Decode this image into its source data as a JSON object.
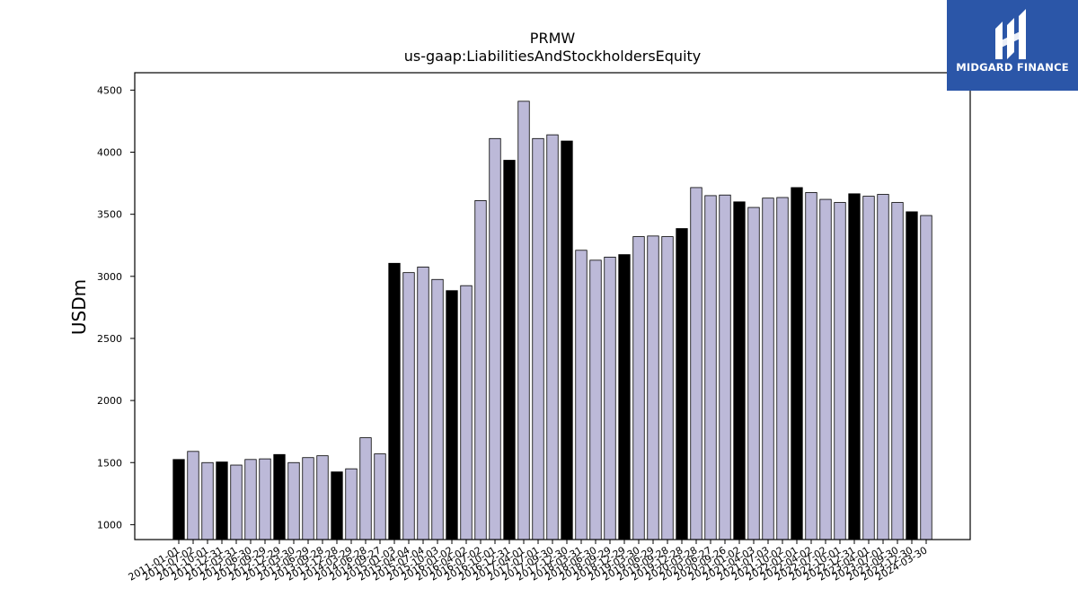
{
  "chart_data": {
    "type": "bar",
    "title": "PRMW",
    "subtitle": "us-gaap:LiabilitiesAndStockholdersEquity",
    "xlabel": "",
    "ylabel": "USDm",
    "ylim": [
      880,
      4640
    ],
    "yticks": [
      1000,
      1500,
      2000,
      2500,
      3000,
      3500,
      4000,
      4500
    ],
    "grid": false,
    "colors": {
      "highlight": "#000000",
      "normal": "#bcb9d8",
      "edge": "#000000"
    },
    "categories": [
      "2011-01-01",
      "2011-07-02",
      "2011-10-01",
      "2011-12-31",
      "2012-03-31",
      "2012-06-30",
      "2012-09-29",
      "2012-12-29",
      "2013-03-30",
      "2013-06-29",
      "2013-09-28",
      "2013-12-28",
      "2014-03-29",
      "2014-06-28",
      "2014-09-27",
      "2015-01-03",
      "2015-04-04",
      "2015-07-04",
      "2015-10-03",
      "2016-01-02",
      "2016-04-02",
      "2016-07-02",
      "2016-10-01",
      "2016-12-31",
      "2017-04-01",
      "2017-07-01",
      "2017-09-30",
      "2017-12-30",
      "2018-03-31",
      "2018-06-30",
      "2018-09-29",
      "2018-12-29",
      "2019-03-30",
      "2019-06-29",
      "2019-09-28",
      "2019-12-28",
      "2020-03-28",
      "2020-06-27",
      "2020-09-26",
      "2021-01-02",
      "2021-04-03",
      "2021-07-03",
      "2021-10-02",
      "2022-01-01",
      "2022-04-02",
      "2022-07-02",
      "2022-10-01",
      "2022-12-31",
      "2023-04-01",
      "2023-07-01",
      "2023-09-30",
      "2023-12-30",
      "2024-03-30"
    ],
    "values": [
      1525,
      1590,
      1500,
      1505,
      1480,
      1525,
      1530,
      1565,
      1500,
      1540,
      1555,
      1425,
      1450,
      1700,
      1570,
      3105,
      3030,
      3075,
      2975,
      2885,
      2925,
      3610,
      4110,
      3935,
      4410,
      4110,
      4140,
      4090,
      3210,
      3130,
      3155,
      3175,
      3320,
      3325,
      3320,
      3385,
      3715,
      3650,
      3655,
      3600,
      3555,
      3630,
      3635,
      3715,
      3675,
      3620,
      3595,
      3665,
      3645,
      3660,
      3595,
      3520,
      3490
    ],
    "highlight": [
      true,
      false,
      false,
      true,
      false,
      false,
      false,
      true,
      false,
      false,
      false,
      true,
      false,
      false,
      false,
      true,
      false,
      false,
      false,
      true,
      false,
      false,
      false,
      true,
      false,
      false,
      false,
      true,
      false,
      false,
      false,
      true,
      false,
      false,
      false,
      true,
      false,
      false,
      false,
      true,
      false,
      false,
      false,
      true,
      false,
      false,
      false,
      true,
      false,
      false,
      false,
      true,
      false
    ]
  },
  "logo": {
    "text": "MIDGARD FINANCE",
    "icon": "midgard-logo-icon"
  }
}
